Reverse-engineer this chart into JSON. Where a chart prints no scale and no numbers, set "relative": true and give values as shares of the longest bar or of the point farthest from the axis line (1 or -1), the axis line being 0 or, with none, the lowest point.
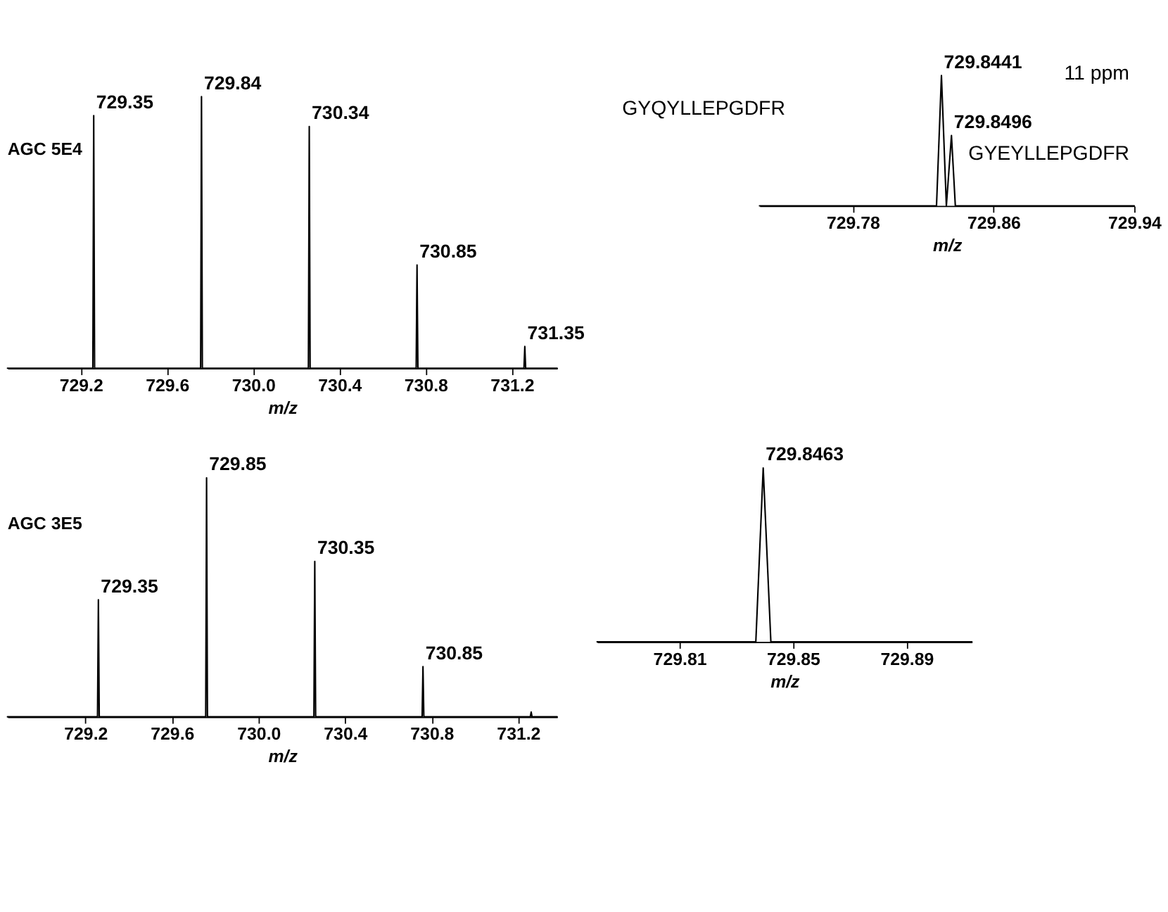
{
  "chart_data": [
    {
      "type": "line",
      "relative": true,
      "xlabel": "m/z",
      "annotations": [
        "AGC 5E4",
        {
          "text": "729.35",
          "x": 729.26,
          "y": 0.93
        },
        {
          "text": "729.84",
          "x": 729.76,
          "y": 1
        },
        {
          "text": "730.34",
          "x": 730.26,
          "y": 0.89
        },
        {
          "text": "730.85",
          "x": 730.76,
          "y": 0.38
        },
        {
          "text": "731.35",
          "x": 731.26,
          "y": 0.08
        }
      ],
      "xlim": [
        728.86,
        731.41
      ],
      "xticks": [
        729.2,
        729.6,
        {
          "value": 730.0,
          "label": "730.0"
        },
        730.4,
        730.8,
        731.2
      ],
      "grid": false,
      "marker": "none",
      "line_style": "solid",
      "series": [
        {
          "color": "#000000",
          "x": [
            728.86,
            729.256,
            729.26,
            729.264,
            729.756,
            729.76,
            729.764,
            730.256,
            730.26,
            730.264,
            730.756,
            730.76,
            730.764,
            731.256,
            731.26,
            731.264,
            731.41
          ],
          "values": [
            0,
            0,
            0.93,
            0,
            0,
            1,
            0,
            0,
            0.89,
            0,
            0,
            0.38,
            0,
            0,
            0.08,
            0,
            0
          ]
        }
      ]
    },
    {
      "type": "line",
      "relative": true,
      "xlabel": "m/z",
      "annotations": [
        "11 ppm",
        "GYQYLLEPGDFR",
        "GYEYLLEPGDFR",
        {
          "text": "729.8441",
          "x": 729.8304,
          "y": 1
        },
        {
          "text": "729.8496",
          "x": 729.8361,
          "y": 0.54
        }
      ],
      "xlim": [
        729.727,
        729.94
      ],
      "xticks": [
        729.78,
        729.86,
        729.94
      ],
      "grid": false,
      "marker": "none",
      "line_style": "solid",
      "series": [
        {
          "color": "#000000",
          "x": [
            729.727,
            729.8276,
            729.8304,
            729.8332,
            729.8361,
            729.8383,
            729.94
          ],
          "values": [
            0,
            0,
            1,
            0,
            0.54,
            0,
            0
          ]
        }
      ]
    },
    {
      "type": "line",
      "relative": true,
      "xlabel": "m/z",
      "annotations": [
        "AGC 3E5",
        {
          "text": "729.35",
          "x": 729.26,
          "y": 0.49
        },
        {
          "text": "729.85",
          "x": 729.76,
          "y": 1
        },
        {
          "text": "730.35",
          "x": 730.26,
          "y": 0.65
        },
        {
          "text": "730.85",
          "x": 730.76,
          "y": 0.21
        }
      ],
      "xlim": [
        728.84,
        731.38
      ],
      "xticks": [
        729.2,
        729.6,
        {
          "value": 730.0,
          "label": "730.0"
        },
        730.4,
        730.8,
        731.2
      ],
      "grid": false,
      "marker": "none",
      "line_style": "solid",
      "series": [
        {
          "color": "#000000",
          "x": [
            728.84,
            729.256,
            729.26,
            729.264,
            729.756,
            729.76,
            729.764,
            730.256,
            730.26,
            730.264,
            730.756,
            730.76,
            730.764,
            731.256,
            731.26,
            731.264,
            731.38
          ],
          "values": [
            0,
            0,
            0.49,
            0,
            0,
            1,
            0,
            0,
            0.65,
            0,
            0,
            0.21,
            0,
            0,
            0.02,
            0,
            0
          ]
        }
      ]
    },
    {
      "type": "line",
      "relative": true,
      "xlabel": "m/z",
      "annotations": [
        {
          "text": "729.8463",
          "x": 729.8395,
          "y": 1
        }
      ],
      "xlim": [
        729.781,
        729.913
      ],
      "xticks": [
        729.81,
        729.85,
        729.89
      ],
      "grid": false,
      "marker": "none",
      "line_style": "solid",
      "series": [
        {
          "color": "#000000",
          "x": [
            729.781,
            729.8369,
            729.8395,
            729.8422,
            729.913
          ],
          "values": [
            0,
            0,
            1,
            0,
            0
          ]
        }
      ]
    }
  ]
}
